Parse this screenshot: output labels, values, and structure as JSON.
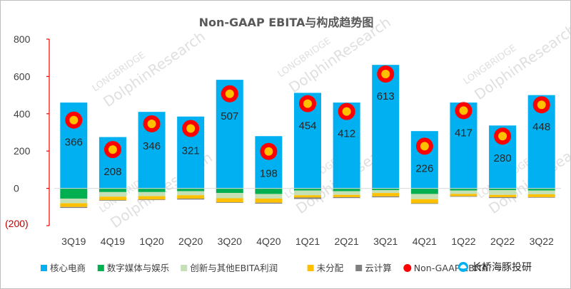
{
  "chart_data": {
    "type": "bar",
    "title": "Non-GAAP EBITA与构成趋势图",
    "categories": [
      "3Q19",
      "4Q19",
      "1Q20",
      "2Q20",
      "3Q20",
      "4Q20",
      "1Q21",
      "2Q21",
      "3Q21",
      "4Q21",
      "1Q22",
      "2Q22",
      "3Q22"
    ],
    "ylim": [
      -200,
      800
    ],
    "yticks": [
      800,
      600,
      400,
      200,
      0,
      -200
    ],
    "ytick_labels": [
      "800",
      "600",
      "400",
      "200",
      "0",
      "(200)"
    ],
    "stacked": true,
    "series": [
      {
        "name": "核心电商",
        "color": "#00b0f0",
        "values": [
          460,
          275,
          410,
          385,
          582,
          280,
          512,
          460,
          662,
          307,
          460,
          337,
          500
        ]
      },
      {
        "name": "数字媒体与娱乐",
        "color": "#00b050",
        "values": [
          -55,
          -20,
          -20,
          -15,
          -25,
          -30,
          -12,
          -15,
          -10,
          -30,
          -12,
          -10,
          -12
        ]
      },
      {
        "name": "创新与其他EBITA利润",
        "color": "#c5e0b4",
        "values": [
          -25,
          -25,
          -22,
          -22,
          -28,
          -25,
          -25,
          -20,
          -15,
          -28,
          -18,
          -25,
          -20
        ]
      },
      {
        "name": "未分配",
        "color": "#ffc000",
        "values": [
          -20,
          -18,
          -18,
          -18,
          -22,
          -22,
          -12,
          -12,
          -18,
          -22,
          -12,
          -12,
          -15
        ]
      },
      {
        "name": "云计算",
        "color": "#7f7f7f",
        "values": [
          -5,
          -3,
          -3,
          -5,
          -3,
          -5,
          -8,
          -5,
          -5,
          -3,
          -3,
          -5,
          -3
        ]
      }
    ],
    "line_series": {
      "name": "Non-GAAP EBITA",
      "color": "#ff0000",
      "values": [
        366,
        208,
        346,
        321,
        507,
        198,
        454,
        412,
        613,
        226,
        417,
        280,
        448
      ]
    },
    "legend_position": "bottom",
    "grid": false
  },
  "watermarks": {
    "brand_en": "DolphinResearch",
    "brand_upper": "LONGBRIDGE"
  },
  "brand_mark": "长桥海豚投研"
}
